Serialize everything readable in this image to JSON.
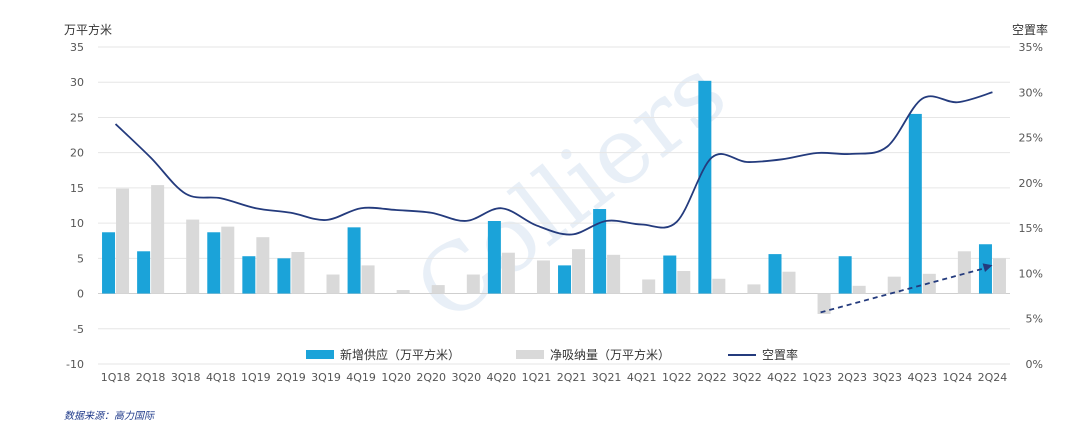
{
  "colors": {
    "supply": "#1ba3d9",
    "absorption": "#d9d9d9",
    "vacancy": "#243b7d",
    "trend": "#243b7d",
    "grid": "#e6e6e6",
    "watermark": "#e6eef7"
  },
  "watermark_text": "Colliers",
  "source": "数据来源：高力国际",
  "chart_data": {
    "type": "bar",
    "y_left_label": "万平方米",
    "y_right_label": "空置率",
    "ylim": [
      -10,
      35
    ],
    "y_ticks": [
      "35",
      "30",
      "25",
      "20",
      "15",
      "10",
      "5",
      "0",
      "-5",
      "-10"
    ],
    "y2lim": [
      0,
      35
    ],
    "y2_ticks": [
      "35%",
      "30%",
      "25%",
      "20%",
      "15%",
      "10%",
      "5%",
      "0%"
    ],
    "grid": true,
    "legend_position": "bottom",
    "categories": [
      "1Q18",
      "2Q18",
      "3Q18",
      "4Q18",
      "1Q19",
      "2Q19",
      "3Q19",
      "4Q19",
      "1Q20",
      "2Q20",
      "3Q20",
      "4Q20",
      "1Q21",
      "2Q21",
      "3Q21",
      "4Q21",
      "1Q22",
      "2Q22",
      "3Q22",
      "4Q22",
      "1Q23",
      "2Q23",
      "3Q23",
      "4Q23",
      "1Q24",
      "2Q24"
    ],
    "series": [
      {
        "name": "新增供应（万平方米）",
        "type": "bar",
        "values": [
          8.7,
          6.0,
          0,
          8.7,
          5.3,
          5.0,
          0,
          9.4,
          0,
          0,
          0,
          10.3,
          0,
          4.0,
          12.0,
          0,
          5.4,
          30.2,
          0,
          5.6,
          0,
          5.3,
          0,
          25.5,
          0,
          7.0
        ]
      },
      {
        "name": "净吸纳量（万平方米）",
        "type": "bar",
        "values": [
          14.9,
          15.4,
          10.5,
          9.5,
          8.0,
          5.9,
          2.7,
          4.0,
          0.5,
          1.2,
          2.7,
          5.8,
          4.7,
          6.3,
          5.5,
          2.0,
          3.2,
          2.1,
          1.3,
          3.1,
          -2.9,
          1.1,
          2.4,
          2.8,
          6.0,
          5.0
        ]
      },
      {
        "name": "空置率",
        "type": "line",
        "values": [
          26.5,
          22.8,
          18.8,
          18.3,
          17.2,
          16.7,
          15.9,
          17.2,
          17.0,
          16.7,
          15.8,
          17.2,
          15.3,
          14.3,
          15.8,
          15.4,
          15.7,
          22.8,
          22.3,
          22.6,
          23.3,
          23.2,
          24.0,
          29.3,
          28.9,
          30.0
        ]
      }
    ],
    "trend_arrow": {
      "from": {
        "x": "1Q23",
        "y2": 5.7
      },
      "to": {
        "x": "2Q24",
        "y2": 10.9
      }
    }
  },
  "legend": {
    "supply": "新增供应（万平方米）",
    "absorption": "净吸纳量（万平方米）",
    "vacancy": "空置率"
  }
}
